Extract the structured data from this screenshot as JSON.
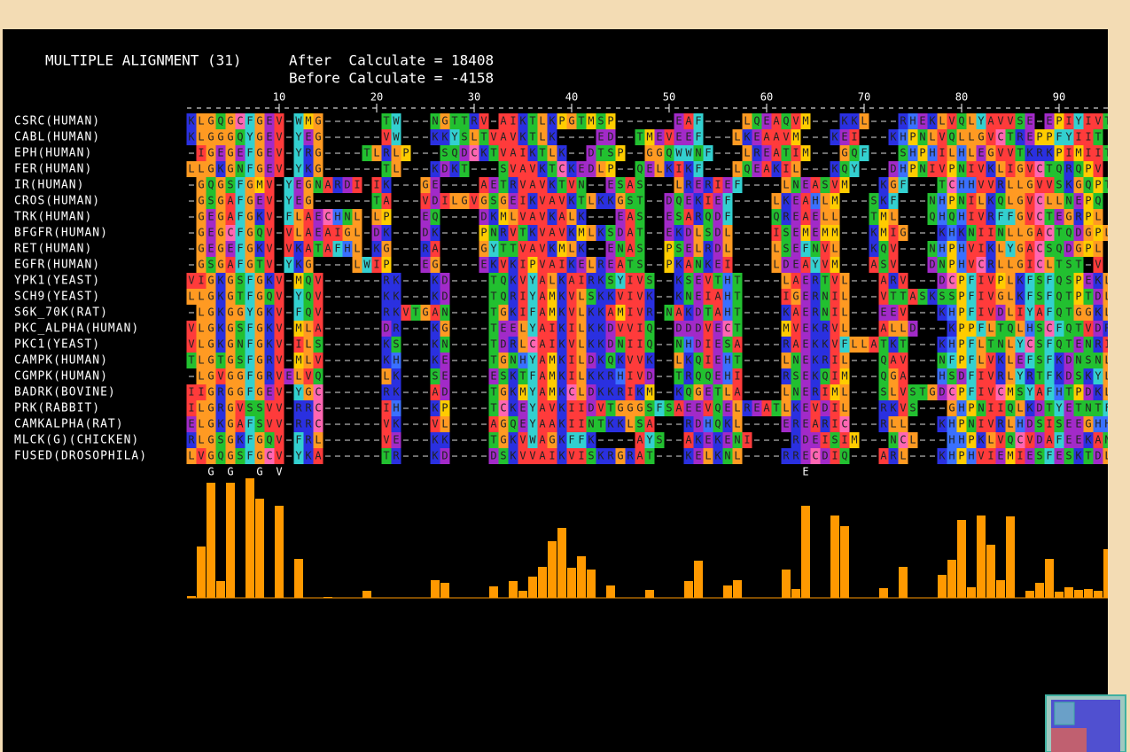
{
  "header": {
    "title": "MULTIPLE ALIGNMENT (31)",
    "after": "After  Calculate = 18408",
    "before": "Before Calculate = -4158"
  },
  "ruler_ticks": [
    10,
    20,
    30,
    40,
    50,
    60,
    70,
    80,
    90
  ],
  "alignment": [
    {
      "name": "CSRC(HUMAN)",
      "sequence": "KLGQGCFGEV-WMG------TW---NGTTRV-AIKTLKPGTMSP------EAF----LQEAQVM---KKL---RHEKLVQLYAVVSE-EPIYIVT"
    },
    {
      "name": "CABL(HUMAN)",
      "sequence": "KLGGGQYGEV-YEG------VW---KKYSLTVAVKTLK----ED--TMEVEEF---LKEAAVM---KEI---KHPNLVQLLGVCTREPPFYIIT"
    },
    {
      "name": "EPH(HUMAN)",
      "sequence": "-IGEGEFGEV-YRG----TLRLP---SQDCKTVAIKTLK--DTSP--GGQWWNF---LREATIM---GQF---SHPHILHLEGVVTKRKPIMIIT"
    },
    {
      "name": "FER(HUMAN)",
      "sequence": "LLGKGNFGEV-YKG------TL---KDKT---SVAVKTCKEDLP--QELKIKF---LQEAKIL---KQY---DHPNIVPNIVKLIGVCTQRQPV"
    },
    {
      "name": "IR(HUMAN)",
      "sequence": "-GQGSFGMV-YEGNARDI-IK---GE----AETRVAVKTVN--ESAS---LRERIEF----LNEASVM---KGF---TCHHVVRLLGVVSKGQPT"
    },
    {
      "name": "CROS(HUMAN)",
      "sequence": "-GSGAFGEV-YEG------TA---VDILGVGSGEIKVAVKTLKKGST--DQEKIEF----LKEAHLM---SKF---NHPNILKQLGVCLLNEPQ"
    },
    {
      "name": "TRK(HUMAN)",
      "sequence": "-GEGAFGKV-FLAECHNL-LP---EQ----DKMLVAVKALK---EAS--ESARQDF----QREAELL---TML---QHQHIVRFFGVCTEGRPL"
    },
    {
      "name": "BFGFR(HUMAN)",
      "sequence": "-GEGCFGQV-VLAEAIGL-DK---DK----PNRVTKVAVKMLKSDAT--EKDLSDL----ISEMEMM---KMIG---KHKNIINLLGACTQDGPL"
    },
    {
      "name": "RET(HUMAN)",
      "sequence": "-GEGEFGKV-VKATAFHL-KG---RA----GYTTVAVKMLK--ENAS--PSELRDL----LSEFNVL---KQV---NHPHVIKLYGACSQDGPL"
    },
    {
      "name": "EGFR(HUMAN)",
      "sequence": "-GSGAFGTV-YKG----LWIP---EG----EKVKIPVAIKELREATS--PKANKEI----LDEAYVM---ASV---DNPHVCRLLGICLTST-V"
    },
    {
      "name": "YPK1(YEAST)",
      "sequence": "VIGKGSFGKV-MQV------RK---KD----TQKVYALKAIRKSYIVS--KSEVTHT----LAERTVL---ARV---DCPFIVPLKFSFQSPEKL"
    },
    {
      "name": "SCH9(YEAST)",
      "sequence": "LLGKGTFGQV-YQV------KK---KD----TQRIYAMKVLSKKVIVK--KNEIAHT----IGERNIL---VTTASKSSPFIVGLKFSFQTPTDL"
    },
    {
      "name": "S6K_70K(RAT)",
      "sequence": "-LGKGGYGKV-FQV------RKVTGAN----TGKIFAMKVLKKAMIVR-NAKDTAHT----KAERNIL---EEV---KHPFIVDLIYAFQTGGKL"
    },
    {
      "name": "PKC_ALPHA(HUMAN)",
      "sequence": "VLGKGSFGKV-MLA------DR---KG----TEELYAIKILKKDVVIQ--DDDVECT----MVEKRVL---ALLD---KPPFLTQLHSCFQTVDRL"
    },
    {
      "name": "PKC1(YEAST)",
      "sequence": "VLGKGNFGKV-ILS------KS---KN----TDRLCAIKVLKKDNIIQ--NHDIESA----RAEKKVFLLATKT---KHPFLTNLYCSFQTENRI"
    },
    {
      "name": "CAMPK(HUMAN)",
      "sequence": "TLGTGSFGRV-MLV------KH---KE----TGNHYAMKILDKQKVVK--LKQIEHT----LNEKRIL---QAV---NFPFLVKLEFSFKDNSNL"
    },
    {
      "name": "CGMPK(HUMAN)",
      "sequence": "-LGVGGFGRVELVQ------LK---SE----ESKTFAMKILKKRHIVD--TRQQEHI----RSEKQIM---QGA---HSDFIVRLYRTFKDSKYL"
    },
    {
      "name": "BADRK(BOVINE)",
      "sequence": "IIGRGGFGEV-YGC------RK---AD----TGKMYAMKCLDKKRIKM--KQGETLA----LNERIML---SLVSTGDCPFIVCMSYAFHTPDKL"
    },
    {
      "name": "PRK(RABBIT)",
      "sequence": "ILGRGVSSVV-RRC------IH---KP----TCKEYAVKIIDVTGGGSFSAEEVQELREATLKEVDIL---RKVS---GHPNIIQLKDTYETNTFF"
    },
    {
      "name": "CAMKALPHA(RAT)",
      "sequence": "ELGKGAFSVV-RRC------VK---VL----AGQEYAAKIINTKKLSA---RDHQKL----EREARIC---RLL---KHPNIVRLHDSISEEGHH"
    },
    {
      "name": "MLCK(G)(CHICKEN)",
      "sequence": "RLGSGKFGQV-FRL------VE---KK----TGKVWAGKFFK----AYS--AKEKENI----RDEISIM---NCL---HHPKLVQCVDAFEEKANI"
    },
    {
      "name": "FUSED(DROSOPHILA)",
      "sequence": "LVGQGSFGCV-YKA------TR---KD----DSKVVAIKVISKRGRAT---KELKNL----RRECDIQ---ARL---KHPHVIEMIESFESKTDL"
    }
  ],
  "consensus": "  G G  G V                                                     E",
  "conservation": {
    "color": "#ff9900",
    "values": [
      2,
      58,
      130,
      19,
      130,
      0,
      135,
      112,
      0,
      104,
      0,
      44,
      0,
      0,
      1,
      0,
      0,
      0,
      8,
      0,
      0,
      0,
      0,
      0,
      0,
      20,
      17,
      0,
      0,
      0,
      0,
      13,
      0,
      19,
      8,
      24,
      35,
      64,
      79,
      34,
      47,
      32,
      0,
      14,
      0,
      0,
      0,
      9,
      0,
      0,
      0,
      19,
      42,
      0,
      0,
      14,
      20,
      0,
      0,
      0,
      0,
      32,
      10,
      104,
      0,
      0,
      93,
      81,
      0,
      0,
      0,
      11,
      0,
      35,
      0,
      0,
      0,
      26,
      43,
      88,
      12,
      93,
      60,
      20,
      92,
      0,
      8,
      17,
      44,
      7,
      12,
      9,
      10,
      8,
      55
    ]
  },
  "residue_colors": {
    "A": "#ff3b3b",
    "V": "#ff3b3b",
    "I": "#ff3b3b",
    "L": "#ff9a22",
    "G": "#ff9a22",
    "M": "#ffcc00",
    "P": "#ffcc00",
    "F": "#33d0d0",
    "Y": "#33d0d0",
    "W": "#33d0d0",
    "K": "#2a30e0",
    "R": "#2a30e0",
    "H": "#3a70ff",
    "E": "#a22ac8",
    "D": "#a22ac8",
    "N": "#22c030",
    "Q": "#22c030",
    "S": "#22c030",
    "T": "#22c030",
    "C": "#ff66b2"
  }
}
